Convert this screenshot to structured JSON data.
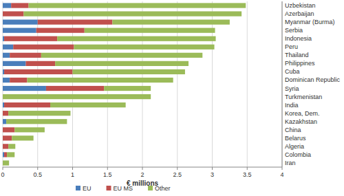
{
  "chart_data": {
    "type": "bar",
    "orientation": "horizontal",
    "stacked": true,
    "grid": true,
    "legend": "bottom",
    "x_label": "€ millions",
    "categories": [
      "Uzbekistan",
      "Azerbaijan",
      "Myanmar (Burma)",
      "Serbia",
      "Indonesia",
      "Peru",
      "Thailand",
      "Philippines",
      "Cuba",
      "Dominican Republic",
      "Syria",
      "Turkmenistan",
      "India",
      "Korea, Dem.",
      "Kazakhstan",
      "China",
      "Belarus",
      "Algeria",
      "Colombia",
      "Iran"
    ],
    "series": [
      {
        "name": "EU",
        "color": "#4a7ebb",
        "values": [
          0.12,
          0,
          0.5,
          0.48,
          0.02,
          0.15,
          0.1,
          0.33,
          0.02,
          0.1,
          0.62,
          0,
          0.02,
          0,
          0.05,
          0,
          0,
          0,
          0.02,
          0
        ]
      },
      {
        "name": "EU MS",
        "color": "#c0504d",
        "values": [
          0.25,
          0.3,
          1.07,
          0.69,
          0.76,
          0.87,
          0.45,
          0.42,
          0.98,
          0.25,
          0.83,
          0,
          0.66,
          0.08,
          0,
          0.17,
          0.13,
          0.08,
          0.04,
          0
        ]
      },
      {
        "name": "Other",
        "color": "#9bbb59",
        "values": [
          3.11,
          3.12,
          1.68,
          1.87,
          2.27,
          2.01,
          2.31,
          1.91,
          1.61,
          2.09,
          0.67,
          2.12,
          1.08,
          0.89,
          0.87,
          0.43,
          0.31,
          0.1,
          0.11,
          0.09
        ]
      }
    ],
    "xlim": [
      0,
      4
    ],
    "xticks": [
      0,
      0.5,
      1,
      1.5,
      2,
      2.5,
      3,
      3.5,
      4
    ]
  }
}
